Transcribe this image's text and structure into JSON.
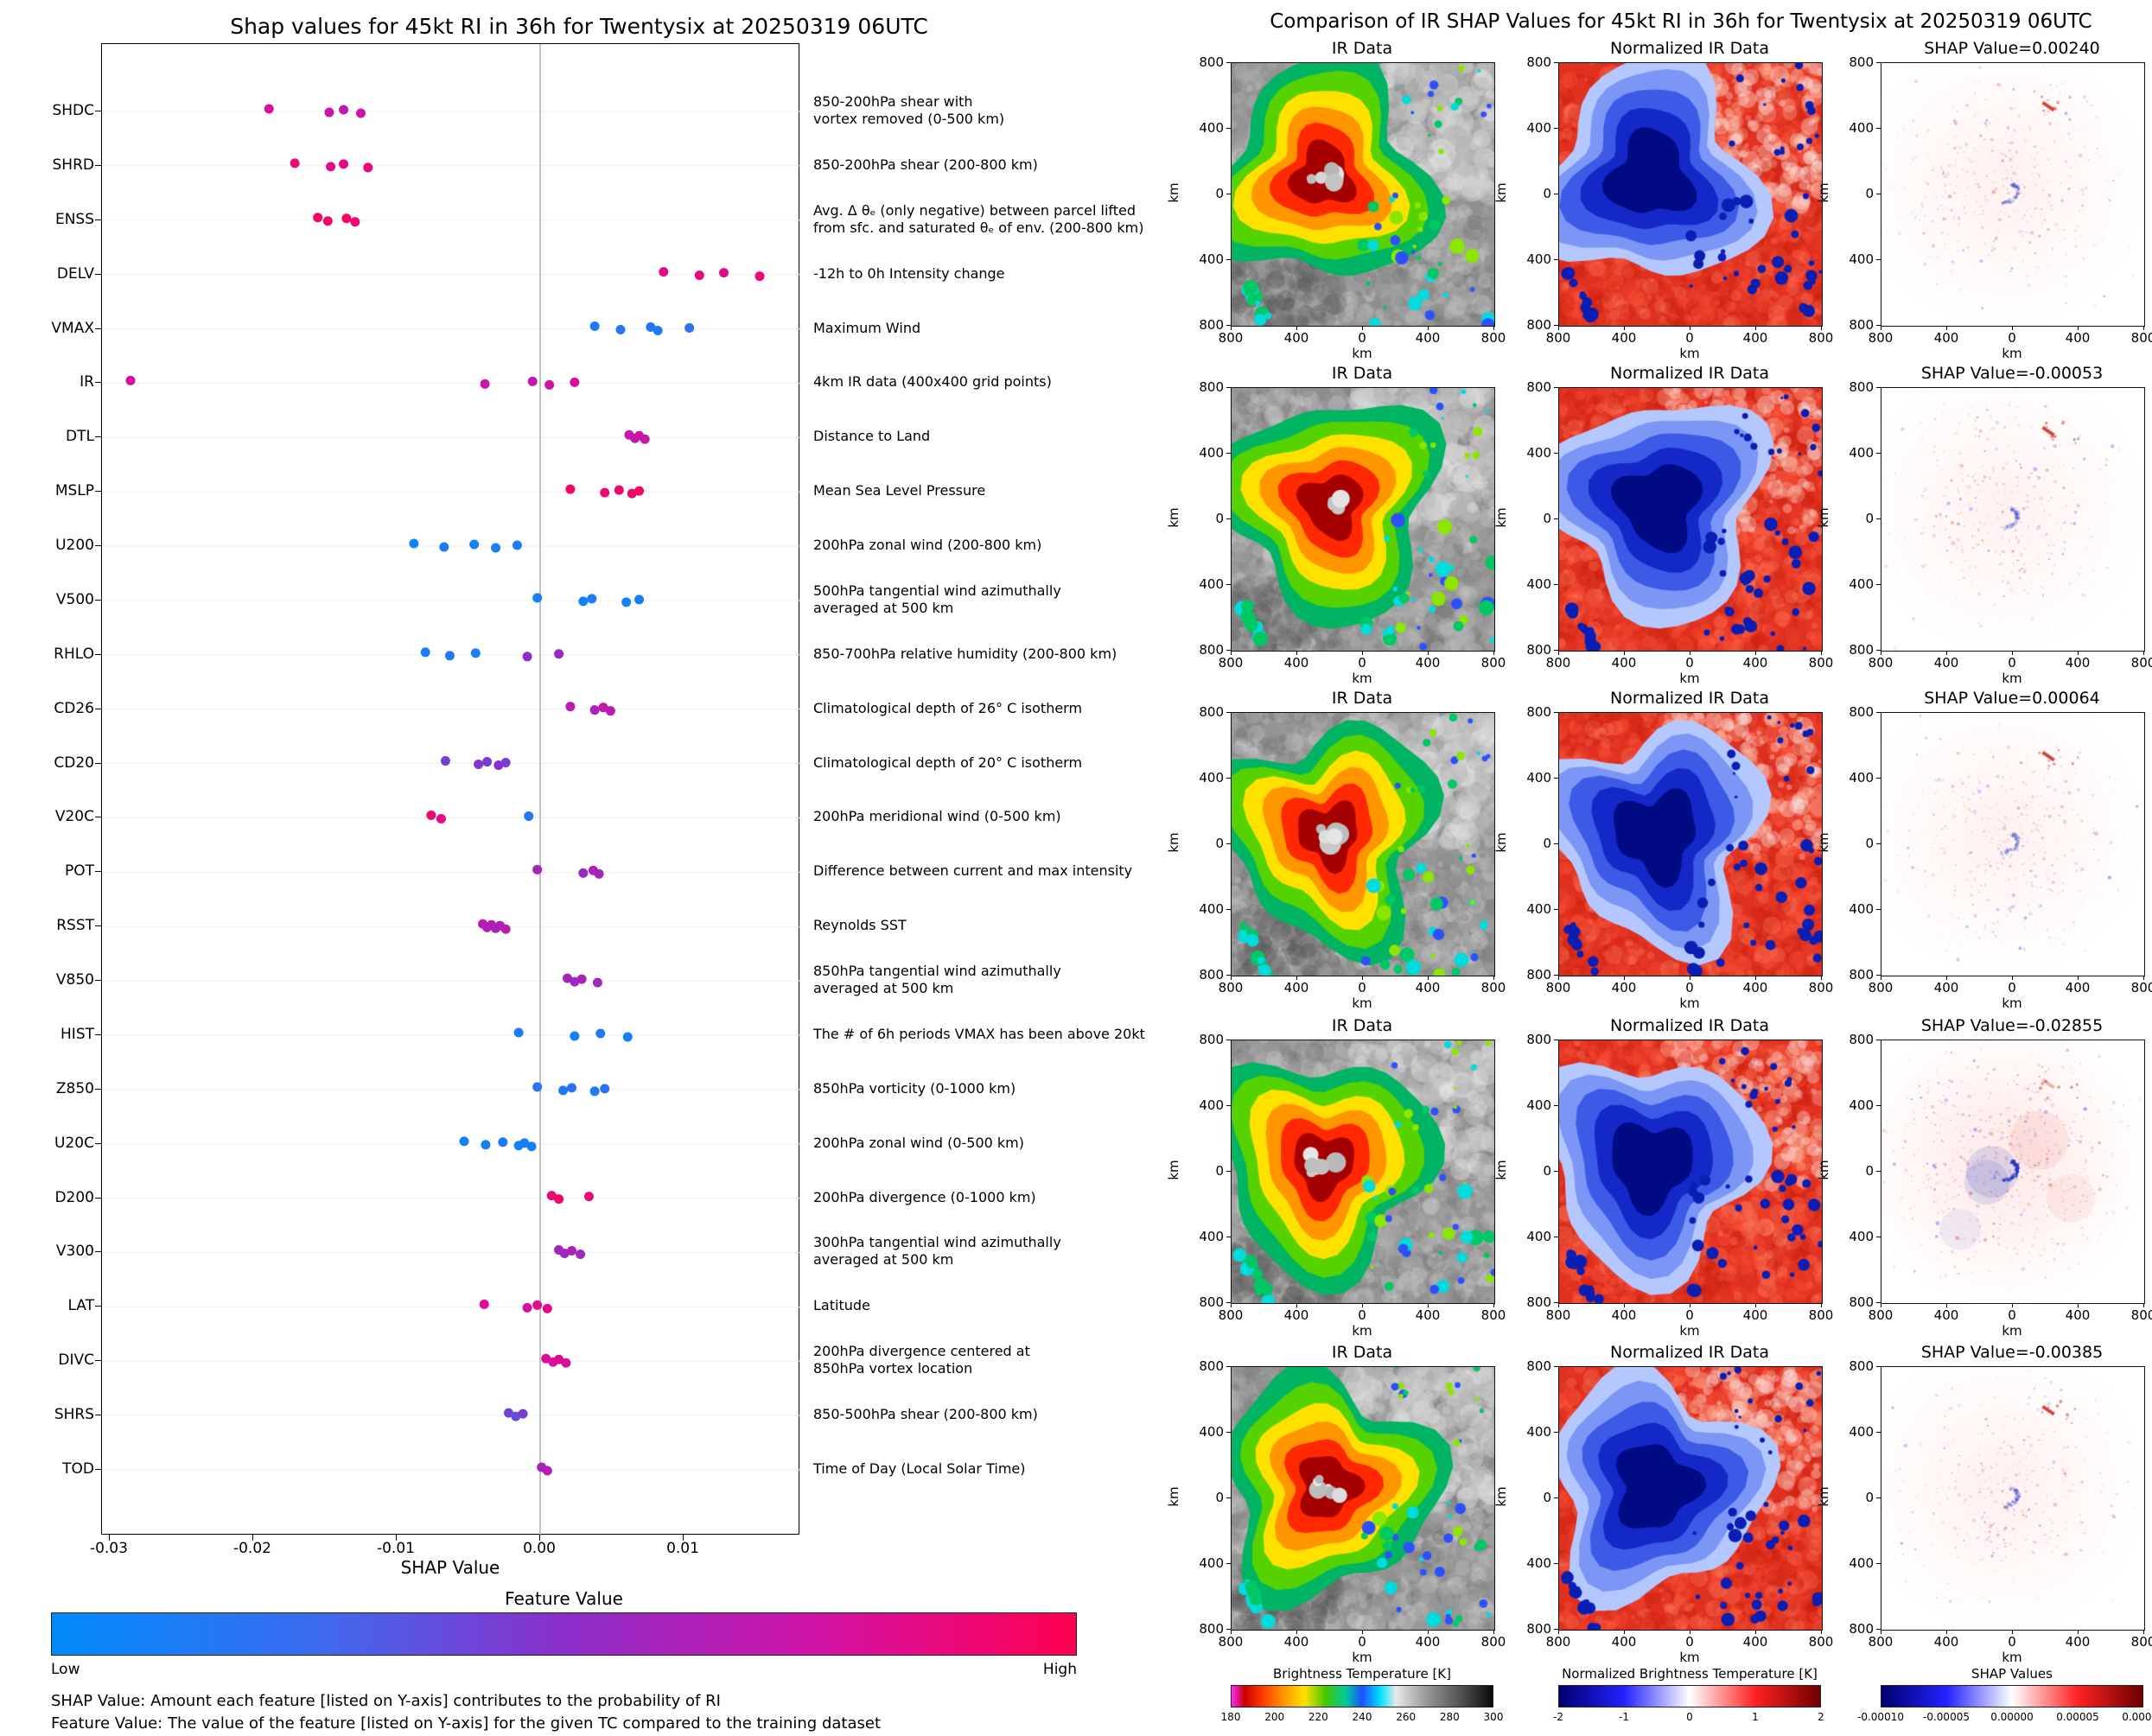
{
  "left": {
    "title": "Shap values for 45kt RI in 36h for Twentysix at 20250319 06UTC",
    "xlabel": "SHAP Value",
    "x_ticks": [
      {
        "v": -0.03,
        "label": "-0.03"
      },
      {
        "v": -0.02,
        "label": "-0.02"
      },
      {
        "v": -0.01,
        "label": "-0.01"
      },
      {
        "v": 0.0,
        "label": "0.00"
      },
      {
        "v": 0.01,
        "label": "0.01"
      }
    ],
    "colorbar": {
      "title": "Feature Value",
      "low": "Low",
      "high": "High"
    },
    "footnote1": "SHAP Value: Amount each feature [listed on Y-axis] contributes to the probability of RI",
    "footnote2": "Feature Value: The value of the feature [listed on Y-axis] for the given TC compared to the training dataset"
  },
  "right": {
    "title": "Comparison of IR SHAP Values for 45kt RI in 36h for Twentysix at 20250319 06UTC",
    "col_titles": [
      "IR Data",
      "Normalized IR Data"
    ],
    "rows": [
      {
        "shap_label": "SHAP Value=0.00240",
        "shap_value": 0.0024
      },
      {
        "shap_label": "SHAP Value=-0.00053",
        "shap_value": -0.00053
      },
      {
        "shap_label": "SHAP Value=0.00064",
        "shap_value": 0.00064
      },
      {
        "shap_label": "SHAP Value=-0.02855",
        "shap_value": -0.02855
      },
      {
        "shap_label": "SHAP Value=-0.00385",
        "shap_value": -0.00385
      }
    ],
    "axis": {
      "ticks": [
        "800",
        "400",
        "0",
        "400",
        "800"
      ],
      "xlabel": "km",
      "ylabel": "km"
    },
    "colorbars": [
      {
        "title": "Brightness Temperature [K]",
        "ticks": [
          "180",
          "200",
          "220",
          "240",
          "260",
          "280",
          "300"
        ],
        "type": "bt"
      },
      {
        "title": "Normalized Brightness Temperature [K]",
        "ticks": [
          "-2",
          "-1",
          "0",
          "1",
          "2"
        ],
        "type": "seismic"
      },
      {
        "title": "SHAP Values",
        "ticks": [
          "-0.00010",
          "-0.00005",
          "0.00000",
          "0.00005",
          "0.00010"
        ],
        "type": "seismic"
      }
    ]
  },
  "chart_data": [
    {
      "type": "scatter",
      "title": "Shap values for 45kt RI in 36h for Twentysix at 20250319 06UTC",
      "xlabel": "SHAP Value",
      "xlim": [
        -0.03054,
        0.01813
      ],
      "x_tick_values": [
        -0.03,
        -0.02,
        -0.01,
        0.0,
        0.01
      ],
      "grid": "zero-line-only",
      "colormap": {
        "low": "#008bfb",
        "mid": "#8b2fc9",
        "high": "#ff0051",
        "low_label": "Low",
        "high_label": "High",
        "colorbar_title": "Feature Value"
      },
      "dots_format": "[shap_value, feature_value_normalized_0to1]",
      "features": [
        {
          "label": "SHDC",
          "description": "850-200hPa shear with\nvortex removed (0-500 km)",
          "dots": [
            [
              -0.0189,
              0.78
            ],
            [
              -0.0147,
              0.72
            ],
            [
              -0.0137,
              0.68
            ],
            [
              -0.0125,
              0.75
            ]
          ]
        },
        {
          "label": "SHRD",
          "description": "850-200hPa shear (200-800 km)",
          "dots": [
            [
              -0.0171,
              0.88
            ],
            [
              -0.0146,
              0.82
            ],
            [
              -0.0137,
              0.85
            ],
            [
              -0.012,
              0.9
            ]
          ]
        },
        {
          "label": "ENSS",
          "description": "Avg. Δ θₑ (only negative) between parcel lifted\nfrom sfc. and saturated θₑ of env. (200-800 km)",
          "dots": [
            [
              -0.0155,
              0.95
            ],
            [
              -0.0148,
              0.92
            ],
            [
              -0.0135,
              0.95
            ],
            [
              -0.0129,
              0.9
            ]
          ]
        },
        {
          "label": "DELV",
          "description": "-12h to 0h Intensity change",
          "dots": [
            [
              0.0086,
              0.85
            ],
            [
              0.0111,
              0.88
            ],
            [
              0.0128,
              0.82
            ],
            [
              0.0153,
              0.9
            ]
          ]
        },
        {
          "label": "VMAX",
          "description": "Maximum Wind",
          "dots": [
            [
              0.0038,
              0.12
            ],
            [
              0.0056,
              0.15
            ],
            [
              0.0077,
              0.18
            ],
            [
              0.0082,
              0.12
            ],
            [
              0.0104,
              0.2
            ]
          ]
        },
        {
          "label": "IR",
          "description": "4km IR data (400x400 grid points)",
          "dots": [
            [
              -0.02855,
              0.78
            ],
            [
              -0.00385,
              0.72
            ],
            [
              -0.00053,
              0.7
            ],
            [
              0.00064,
              0.74
            ],
            [
              0.0024,
              0.78
            ]
          ]
        },
        {
          "label": "DTL",
          "description": "Distance to Land",
          "dots": [
            [
              0.0062,
              0.72
            ],
            [
              0.0066,
              0.68
            ],
            [
              0.0069,
              0.74
            ],
            [
              0.0073,
              0.7
            ]
          ]
        },
        {
          "label": "MSLP",
          "description": "Mean Sea Level Pressure",
          "dots": [
            [
              0.0021,
              0.95
            ],
            [
              0.0045,
              0.9
            ],
            [
              0.0055,
              0.93
            ],
            [
              0.0064,
              0.9
            ],
            [
              0.0069,
              0.95
            ]
          ]
        },
        {
          "label": "U200",
          "description": "200hPa zonal wind (200-800 km)",
          "dots": [
            [
              -0.0088,
              0.08
            ],
            [
              -0.0067,
              0.12
            ],
            [
              -0.0046,
              0.08
            ],
            [
              -0.0031,
              0.1
            ],
            [
              -0.0016,
              0.12
            ]
          ]
        },
        {
          "label": "V500",
          "description": "500hPa tangential wind azimuthally\naveraged at 500 km",
          "dots": [
            [
              -0.0002,
              0.1
            ],
            [
              0.003,
              0.08
            ],
            [
              0.0036,
              0.12
            ],
            [
              0.006,
              0.08
            ],
            [
              0.0069,
              0.12
            ]
          ]
        },
        {
          "label": "RHLO",
          "description": "850-700hPa relative humidity (200-800 km)",
          "dots": [
            [
              -0.008,
              0.12
            ],
            [
              -0.0063,
              0.15
            ],
            [
              -0.0045,
              0.1
            ],
            [
              -0.0009,
              0.5
            ],
            [
              0.0013,
              0.55
            ]
          ]
        },
        {
          "label": "CD26",
          "description": "Climatological depth of 26° C isotherm",
          "dots": [
            [
              0.0021,
              0.68
            ],
            [
              0.0038,
              0.62
            ],
            [
              0.0044,
              0.7
            ],
            [
              0.0049,
              0.66
            ]
          ]
        },
        {
          "label": "CD20",
          "description": "Climatological depth of 20° C isotherm",
          "dots": [
            [
              -0.0066,
              0.42
            ],
            [
              -0.0043,
              0.48
            ],
            [
              -0.0037,
              0.45
            ],
            [
              -0.0029,
              0.5
            ],
            [
              -0.0024,
              0.44
            ]
          ]
        },
        {
          "label": "V20C",
          "description": "200hPa meridional wind (0-500 km)",
          "dots": [
            [
              -0.0076,
              0.9
            ],
            [
              -0.0069,
              0.86
            ],
            [
              -0.0008,
              0.15
            ]
          ]
        },
        {
          "label": "POT",
          "description": "Difference between current and max intensity",
          "dots": [
            [
              -0.0002,
              0.6
            ],
            [
              0.003,
              0.55
            ],
            [
              0.0037,
              0.62
            ],
            [
              0.0041,
              0.58
            ]
          ]
        },
        {
          "label": "RSST",
          "description": "Reynolds SST",
          "dots": [
            [
              -0.004,
              0.68
            ],
            [
              -0.0037,
              0.62
            ],
            [
              -0.0034,
              0.66
            ],
            [
              -0.0031,
              0.6
            ],
            [
              -0.0028,
              0.64
            ],
            [
              -0.0024,
              0.68
            ]
          ]
        },
        {
          "label": "V850",
          "description": "850hPa tangential wind azimuthally\naveraged at 500 km",
          "dots": [
            [
              0.0019,
              0.6
            ],
            [
              0.0024,
              0.56
            ],
            [
              0.0029,
              0.62
            ],
            [
              0.004,
              0.58
            ]
          ]
        },
        {
          "label": "HIST",
          "description": "The # of 6h periods VMAX has been above 20kt",
          "dots": [
            [
              -0.0015,
              0.12
            ],
            [
              0.0024,
              0.08
            ],
            [
              0.0042,
              0.15
            ],
            [
              0.0061,
              0.1
            ]
          ]
        },
        {
          "label": "Z850",
          "description": "850hPa vorticity (0-1000 km)",
          "dots": [
            [
              -0.0002,
              0.18
            ],
            [
              0.0016,
              0.12
            ],
            [
              0.0022,
              0.2
            ],
            [
              0.0038,
              0.15
            ],
            [
              0.0045,
              0.2
            ]
          ]
        },
        {
          "label": "U20C",
          "description": "200hPa zonal wind (0-500 km)",
          "dots": [
            [
              -0.0053,
              0.1
            ],
            [
              -0.0038,
              0.08
            ],
            [
              -0.0026,
              0.12
            ],
            [
              -0.0015,
              0.08
            ],
            [
              -0.0011,
              0.12
            ],
            [
              -0.0006,
              0.1
            ]
          ]
        },
        {
          "label": "D200",
          "description": "200hPa divergence (0-1000 km)",
          "dots": [
            [
              0.0008,
              0.9
            ],
            [
              0.0013,
              0.94
            ],
            [
              0.0034,
              0.88
            ]
          ]
        },
        {
          "label": "V300",
          "description": "300hPa tangential wind azimuthally\naveraged at 500 km",
          "dots": [
            [
              0.0013,
              0.6
            ],
            [
              0.0017,
              0.55
            ],
            [
              0.0022,
              0.62
            ],
            [
              0.0028,
              0.58
            ]
          ]
        },
        {
          "label": "LAT",
          "description": "Latitude",
          "dots": [
            [
              -0.0039,
              0.8
            ],
            [
              -0.0009,
              0.75
            ],
            [
              -0.0002,
              0.82
            ],
            [
              0.0005,
              0.85
            ]
          ]
        },
        {
          "label": "DIVC",
          "description": "200hPa divergence centered at\n850hPa vortex location",
          "dots": [
            [
              0.0004,
              0.8
            ],
            [
              0.0009,
              0.76
            ],
            [
              0.0013,
              0.82
            ],
            [
              0.0018,
              0.78
            ]
          ]
        },
        {
          "label": "SHRS",
          "description": "850-500hPa shear (200-800 km)",
          "dots": [
            [
              -0.0022,
              0.42
            ],
            [
              -0.0017,
              0.38
            ],
            [
              -0.0012,
              0.44
            ]
          ]
        },
        {
          "label": "TOD",
          "description": "Time of Day (Local Solar Time)",
          "dots": [
            [
              0.0001,
              0.6
            ],
            [
              0.0005,
              0.64
            ]
          ]
        }
      ]
    },
    {
      "type": "heatmap",
      "title": "Comparison of IR SHAP Values for 45kt RI in 36h for Twentysix at 20250319 06UTC",
      "columns": [
        "IR Data",
        "Normalized IR Data",
        "SHAP Value"
      ],
      "row_shap_values": [
        0.0024,
        -0.00053,
        0.00064,
        -0.02855,
        -0.00385
      ],
      "axis_ticks_km": [
        800,
        400,
        0,
        400,
        800
      ],
      "colorbar_ranges": {
        "brightness_temperature_K": [
          180,
          300
        ],
        "normalized_brightness_temperature": [
          -2,
          2
        ],
        "shap_values": [
          -0.0001,
          0.0001
        ]
      }
    }
  ]
}
